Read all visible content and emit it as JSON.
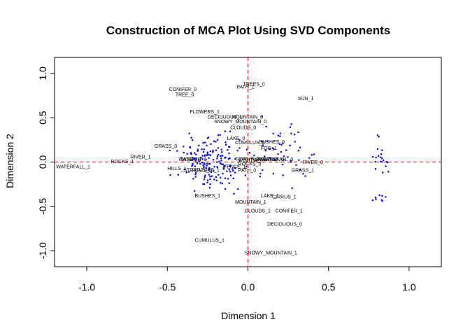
{
  "chart_data": {
    "type": "scatter",
    "title": "Construction of MCA Plot Using SVD Components",
    "xlabel": "Dimension 1",
    "ylabel": "Dimension 2",
    "xlim": [
      -1.2,
      1.2
    ],
    "ylim": [
      -1.18,
      1.18
    ],
    "xticks": [
      -1.0,
      -0.5,
      0.0,
      0.5,
      1.0
    ],
    "xtick_labels": [
      "-1.0",
      "-0.5",
      "0.0",
      "0.5",
      "1.0"
    ],
    "yticks": [
      -1.0,
      -0.5,
      0.0,
      0.5,
      1.0
    ],
    "ytick_labels": [
      "-1.0",
      "-0.5",
      "0.0",
      "0.5",
      "1.0"
    ],
    "grid": false,
    "reference_lines": {
      "x": 0,
      "y": 0,
      "color": "#ff0000",
      "style": "dashed"
    },
    "point_color": "#0000ff",
    "label_color": "#000000",
    "category_labels": [
      {
        "text": "CONIFER_0",
        "x": -0.49,
        "y": 0.8
      },
      {
        "text": "TREE_0",
        "x": -0.45,
        "y": 0.74
      },
      {
        "text": "TREES_0",
        "x": -0.03,
        "y": 0.86
      },
      {
        "text": "PATH_1",
        "x": -0.07,
        "y": 0.83
      },
      {
        "text": "SUN_1",
        "x": 0.31,
        "y": 0.7
      },
      {
        "text": "FLOWERS_1",
        "x": -0.36,
        "y": 0.55
      },
      {
        "text": "DECIDUOUS_1",
        "x": -0.25,
        "y": 0.49
      },
      {
        "text": "MOUNTAIN_0",
        "x": -0.1,
        "y": 0.49
      },
      {
        "text": "SNOWY_MOUNTAIN_0",
        "x": -0.21,
        "y": 0.44
      },
      {
        "text": "CLOUDS_0",
        "x": -0.11,
        "y": 0.37
      },
      {
        "text": "LAKE_0",
        "x": -0.13,
        "y": 0.25
      },
      {
        "text": "CUMULUS_0",
        "x": -0.08,
        "y": 0.2
      },
      {
        "text": "BUSHES_0",
        "x": 0.07,
        "y": 0.21
      },
      {
        "text": "FOG_1",
        "x": 0.08,
        "y": 0.14
      },
      {
        "text": "GRASS_0",
        "x": -0.58,
        "y": 0.16
      },
      {
        "text": "RIVER_1",
        "x": -0.73,
        "y": 0.04
      },
      {
        "text": "ROCKS_1",
        "x": -0.85,
        "y": -0.01
      },
      {
        "text": "WATERFALL_1",
        "x": -1.19,
        "y": -0.07
      },
      {
        "text": "WATER_0",
        "x": -0.43,
        "y": 0.01
      },
      {
        "text": "WINTER_0",
        "x": -0.41,
        "y": 0.01
      },
      {
        "text": "HILLS_1",
        "x": -0.5,
        "y": -0.09
      },
      {
        "text": "STRATUS_1",
        "x": -0.4,
        "y": -0.11
      },
      {
        "text": "FEATURE_1",
        "x": -0.35,
        "y": -0.11
      },
      {
        "text": "CIRRUS_0",
        "x": -0.08,
        "y": 0.02
      },
      {
        "text": "WINTER_1",
        "x": -0.06,
        "y": 0.0
      },
      {
        "text": "FENCE_1",
        "x": -0.15,
        "y": -0.07
      },
      {
        "text": "ROCKS_0",
        "x": -0.06,
        "y": -0.04
      },
      {
        "text": "WATER_1",
        "x": 0.03,
        "y": 0.01
      },
      {
        "text": "STRATUS_0",
        "x": 0.05,
        "y": 0.01
      },
      {
        "text": "WATERFALL_0",
        "x": 0.07,
        "y": 0.01
      },
      {
        "text": "PATH_0",
        "x": -0.06,
        "y": -0.11
      },
      {
        "text": "RIVER_0",
        "x": 0.34,
        "y": -0.02
      },
      {
        "text": "GRASS_1",
        "x": 0.27,
        "y": -0.11
      },
      {
        "text": "BUSHES_1",
        "x": -0.33,
        "y": -0.4
      },
      {
        "text": "LAKE_1",
        "x": 0.08,
        "y": -0.4
      },
      {
        "text": "CIRRUS_1",
        "x": 0.15,
        "y": -0.41
      },
      {
        "text": "MOUNTAIN_1",
        "x": -0.08,
        "y": -0.47
      },
      {
        "text": "CLOUDS_1",
        "x": -0.02,
        "y": -0.57
      },
      {
        "text": "CONIFER_1",
        "x": 0.17,
        "y": -0.57
      },
      {
        "text": "DECIDUOUS_0",
        "x": 0.12,
        "y": -0.72
      },
      {
        "text": "CUMULUS_1",
        "x": -0.33,
        "y": -0.9
      },
      {
        "text": "SNOWY_MOUNTAIN_1",
        "x": -0.02,
        "y": -1.04
      }
    ]
  }
}
